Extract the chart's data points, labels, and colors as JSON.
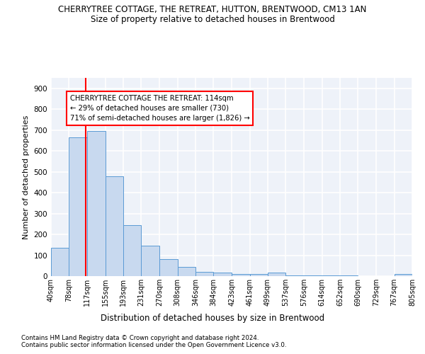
{
  "title1": "CHERRYTREE COTTAGE, THE RETREAT, HUTTON, BRENTWOOD, CM13 1AN",
  "title2": "Size of property relative to detached houses in Brentwood",
  "xlabel": "Distribution of detached houses by size in Brentwood",
  "ylabel": "Number of detached properties",
  "bar_color": "#c8d9ef",
  "bar_edge_color": "#5b9bd5",
  "bin_labels": [
    "40sqm",
    "78sqm",
    "117sqm",
    "155sqm",
    "193sqm",
    "231sqm",
    "270sqm",
    "308sqm",
    "346sqm",
    "384sqm",
    "423sqm",
    "461sqm",
    "499sqm",
    "537sqm",
    "576sqm",
    "614sqm",
    "652sqm",
    "690sqm",
    "729sqm",
    "767sqm",
    "805sqm"
  ],
  "bar_heights": [
    135,
    665,
    695,
    480,
    245,
    145,
    83,
    45,
    20,
    18,
    10,
    10,
    18,
    5,
    5,
    2,
    2,
    1,
    1,
    10
  ],
  "ylim": [
    0,
    950
  ],
  "yticks": [
    0,
    100,
    200,
    300,
    400,
    500,
    600,
    700,
    800,
    900
  ],
  "vline_x": 114,
  "annotation_text": "CHERRYTREE COTTAGE THE RETREAT: 114sqm\n← 29% of detached houses are smaller (730)\n71% of semi-detached houses are larger (1,826) →",
  "vline_color": "red",
  "annotation_edge_color": "red",
  "footer1": "Contains HM Land Registry data © Crown copyright and database right 2024.",
  "footer2": "Contains public sector information licensed under the Open Government Licence v3.0.",
  "background_color": "#eef2f9",
  "grid_color": "white"
}
